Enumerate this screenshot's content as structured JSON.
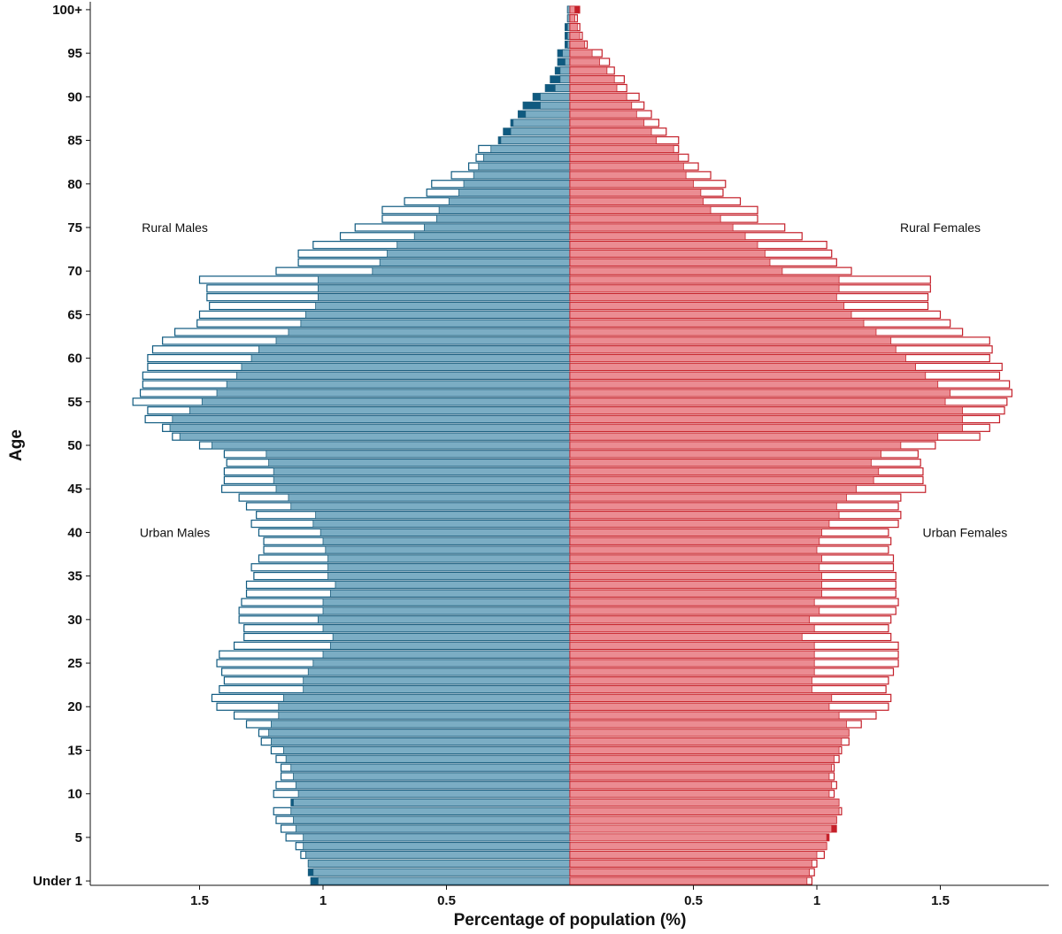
{
  "chart_data": {
    "type": "bar",
    "orientation": "horizontal-pyramid",
    "xlabel": "Percentage of population (%)",
    "ylabel": "Age",
    "xlim": [
      -1.95,
      1.95
    ],
    "x_ticks": [
      -1.5,
      -1,
      -0.5,
      0.5,
      1,
      1.5
    ],
    "x_tick_labels": [
      "1.5",
      "1",
      "0.5",
      "0.5",
      "1",
      "1.5"
    ],
    "y_ticks": [
      0,
      5,
      10,
      15,
      20,
      25,
      30,
      35,
      40,
      45,
      50,
      55,
      60,
      65,
      70,
      75,
      80,
      85,
      90,
      95,
      100
    ],
    "y_tick_labels": [
      "Under 1",
      "5",
      "10",
      "15",
      "20",
      "25",
      "30",
      "35",
      "40",
      "45",
      "50",
      "55",
      "60",
      "65",
      "70",
      "75",
      "80",
      "85",
      "90",
      "95",
      "100+"
    ],
    "grid": false,
    "annotations": [
      {
        "text": "Rural Males",
        "age": 75,
        "value": -1.6
      },
      {
        "text": "Rural Females",
        "age": 75,
        "value": 1.5
      },
      {
        "text": "Urban Males",
        "age": 40,
        "value": -1.6
      },
      {
        "text": "Urban Females",
        "age": 40,
        "value": 1.6
      }
    ],
    "colors": {
      "urban_male_fill": "#7badc4",
      "urban_male_stroke": "#1f5f7e",
      "urban_male_excess": "#0f5a80",
      "rural_male_outline": "#0f5a80",
      "urban_female_fill": "#eb8c92",
      "urban_female_stroke": "#c8262d",
      "urban_female_excess": "#c41f29",
      "rural_female_outline": "#c41f29"
    },
    "ages": [
      0,
      1,
      2,
      3,
      4,
      5,
      6,
      7,
      8,
      9,
      10,
      11,
      12,
      13,
      14,
      15,
      16,
      17,
      18,
      19,
      20,
      21,
      22,
      23,
      24,
      25,
      26,
      27,
      28,
      29,
      30,
      31,
      32,
      33,
      34,
      35,
      36,
      37,
      38,
      39,
      40,
      41,
      42,
      43,
      44,
      45,
      46,
      47,
      48,
      49,
      50,
      51,
      52,
      53,
      54,
      55,
      56,
      57,
      58,
      59,
      60,
      61,
      62,
      63,
      64,
      65,
      66,
      67,
      68,
      69,
      70,
      71,
      72,
      73,
      74,
      75,
      76,
      77,
      78,
      79,
      80,
      81,
      82,
      83,
      84,
      85,
      86,
      87,
      88,
      89,
      90,
      91,
      92,
      93,
      94,
      95,
      96,
      97,
      98,
      99,
      100
    ],
    "series": [
      {
        "name": "Urban Males",
        "values": [
          1.05,
          1.06,
          1.06,
          1.07,
          1.08,
          1.08,
          1.11,
          1.12,
          1.13,
          1.13,
          1.1,
          1.11,
          1.12,
          1.13,
          1.15,
          1.16,
          1.21,
          1.22,
          1.21,
          1.18,
          1.18,
          1.16,
          1.08,
          1.08,
          1.06,
          1.04,
          1.0,
          0.97,
          0.96,
          1.0,
          1.02,
          1.0,
          1.0,
          0.97,
          0.95,
          0.98,
          0.98,
          0.98,
          0.99,
          1.0,
          1.01,
          1.04,
          1.03,
          1.13,
          1.14,
          1.19,
          1.2,
          1.2,
          1.22,
          1.23,
          1.45,
          1.58,
          1.62,
          1.61,
          1.54,
          1.49,
          1.43,
          1.39,
          1.35,
          1.33,
          1.29,
          1.26,
          1.19,
          1.14,
          1.09,
          1.07,
          1.03,
          1.02,
          1.02,
          1.02,
          0.8,
          0.77,
          0.74,
          0.7,
          0.63,
          0.59,
          0.54,
          0.53,
          0.49,
          0.45,
          0.43,
          0.39,
          0.37,
          0.35,
          0.32,
          0.29,
          0.27,
          0.24,
          0.21,
          0.19,
          0.15,
          0.1,
          0.08,
          0.06,
          0.05,
          0.05,
          0.02,
          0.02,
          0.02,
          0.01,
          0.01
        ]
      },
      {
        "name": "Rural Males",
        "values": [
          1.02,
          1.04,
          1.06,
          1.09,
          1.11,
          1.15,
          1.17,
          1.19,
          1.2,
          1.12,
          1.2,
          1.19,
          1.17,
          1.17,
          1.19,
          1.21,
          1.25,
          1.26,
          1.31,
          1.36,
          1.43,
          1.45,
          1.42,
          1.4,
          1.41,
          1.43,
          1.42,
          1.36,
          1.32,
          1.32,
          1.34,
          1.34,
          1.33,
          1.31,
          1.31,
          1.28,
          1.29,
          1.26,
          1.24,
          1.24,
          1.26,
          1.29,
          1.27,
          1.31,
          1.34,
          1.41,
          1.4,
          1.4,
          1.39,
          1.4,
          1.5,
          1.61,
          1.65,
          1.72,
          1.71,
          1.77,
          1.74,
          1.73,
          1.73,
          1.71,
          1.71,
          1.69,
          1.65,
          1.6,
          1.51,
          1.5,
          1.46,
          1.47,
          1.47,
          1.5,
          1.19,
          1.1,
          1.1,
          1.04,
          0.93,
          0.87,
          0.76,
          0.76,
          0.67,
          0.58,
          0.56,
          0.48,
          0.41,
          0.38,
          0.37,
          0.28,
          0.24,
          0.23,
          0.18,
          0.12,
          0.12,
          0.06,
          0.04,
          0.04,
          0.02,
          0.03,
          0.01,
          0.01,
          0.01,
          0.01,
          0.01
        ]
      },
      {
        "name": "Urban Females",
        "values": [
          0.96,
          0.97,
          0.98,
          1.0,
          1.04,
          1.05,
          1.08,
          1.08,
          1.09,
          1.09,
          1.05,
          1.06,
          1.05,
          1.06,
          1.07,
          1.09,
          1.1,
          1.13,
          1.12,
          1.09,
          1.05,
          1.06,
          0.98,
          0.98,
          0.99,
          0.99,
          0.99,
          0.99,
          0.94,
          0.99,
          0.97,
          1.01,
          0.99,
          1.02,
          1.02,
          1.02,
          1.01,
          1.02,
          1.0,
          1.01,
          1.02,
          1.05,
          1.09,
          1.08,
          1.12,
          1.16,
          1.23,
          1.25,
          1.22,
          1.26,
          1.34,
          1.49,
          1.59,
          1.59,
          1.59,
          1.52,
          1.54,
          1.49,
          1.44,
          1.4,
          1.36,
          1.32,
          1.3,
          1.24,
          1.19,
          1.14,
          1.11,
          1.08,
          1.09,
          1.09,
          0.86,
          0.81,
          0.79,
          0.76,
          0.71,
          0.66,
          0.61,
          0.57,
          0.54,
          0.53,
          0.5,
          0.47,
          0.46,
          0.44,
          0.42,
          0.35,
          0.33,
          0.3,
          0.27,
          0.25,
          0.23,
          0.19,
          0.18,
          0.15,
          0.12,
          0.09,
          0.06,
          0.04,
          0.03,
          0.02,
          0.04
        ]
      },
      {
        "name": "Rural Females",
        "values": [
          0.98,
          0.99,
          1.0,
          1.03,
          1.04,
          1.04,
          1.06,
          1.08,
          1.1,
          1.09,
          1.07,
          1.08,
          1.07,
          1.07,
          1.09,
          1.1,
          1.13,
          1.13,
          1.18,
          1.24,
          1.29,
          1.3,
          1.28,
          1.29,
          1.31,
          1.33,
          1.33,
          1.33,
          1.3,
          1.29,
          1.3,
          1.32,
          1.33,
          1.32,
          1.32,
          1.32,
          1.31,
          1.31,
          1.29,
          1.3,
          1.29,
          1.33,
          1.34,
          1.33,
          1.34,
          1.44,
          1.43,
          1.43,
          1.42,
          1.41,
          1.48,
          1.66,
          1.7,
          1.74,
          1.76,
          1.77,
          1.79,
          1.78,
          1.74,
          1.75,
          1.7,
          1.71,
          1.7,
          1.59,
          1.54,
          1.5,
          1.45,
          1.45,
          1.46,
          1.46,
          1.14,
          1.08,
          1.06,
          1.04,
          0.94,
          0.87,
          0.76,
          0.76,
          0.69,
          0.62,
          0.63,
          0.57,
          0.52,
          0.48,
          0.44,
          0.44,
          0.39,
          0.36,
          0.33,
          0.3,
          0.28,
          0.23,
          0.22,
          0.18,
          0.16,
          0.13,
          0.07,
          0.05,
          0.04,
          0.03,
          0.02
        ]
      }
    ]
  }
}
